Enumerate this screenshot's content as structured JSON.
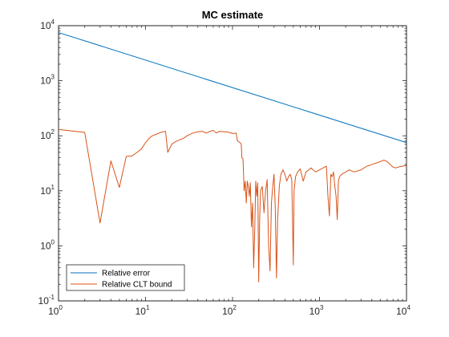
{
  "chart_data": {
    "type": "line",
    "title": "MC estimate",
    "xlabel": "",
    "ylabel": "",
    "xscale": "log",
    "yscale": "log",
    "xlim": [
      1,
      10000
    ],
    "ylim": [
      0.1,
      10000
    ],
    "grid": false,
    "legend_position": "bottom-left",
    "x_ticks": [
      {
        "base": "10",
        "exp": "0",
        "value": 1
      },
      {
        "base": "10",
        "exp": "1",
        "value": 10
      },
      {
        "base": "10",
        "exp": "2",
        "value": 100
      },
      {
        "base": "10",
        "exp": "3",
        "value": 1000
      },
      {
        "base": "10",
        "exp": "4",
        "value": 10000
      }
    ],
    "y_ticks": [
      {
        "base": "10",
        "exp": "-1",
        "value": 0.1
      },
      {
        "base": "10",
        "exp": "0",
        "value": 1
      },
      {
        "base": "10",
        "exp": "1",
        "value": 10
      },
      {
        "base": "10",
        "exp": "2",
        "value": 100
      },
      {
        "base": "10",
        "exp": "3",
        "value": 1000
      },
      {
        "base": "10",
        "exp": "4",
        "value": 10000
      }
    ],
    "series": [
      {
        "name": "Relative error",
        "color": "#0072BD",
        "points": [
          [
            1,
            7500
          ],
          [
            10000,
            75
          ]
        ]
      },
      {
        "name": "Relative CLT bound",
        "color": "#D95319",
        "points": [
          [
            1,
            130
          ],
          [
            2,
            115
          ],
          [
            3,
            2.6
          ],
          [
            4,
            35
          ],
          [
            5,
            11.5
          ],
          [
            6,
            42
          ],
          [
            7,
            43
          ],
          [
            8,
            50
          ],
          [
            9,
            58
          ],
          [
            10,
            75
          ],
          [
            11,
            90
          ],
          [
            12,
            100
          ],
          [
            13,
            105
          ],
          [
            14,
            110
          ],
          [
            15,
            115
          ],
          [
            16,
            118
          ],
          [
            17,
            120
          ],
          [
            18,
            50
          ],
          [
            20,
            70
          ],
          [
            22,
            78
          ],
          [
            25,
            85
          ],
          [
            28,
            92
          ],
          [
            30,
            100
          ],
          [
            35,
            112
          ],
          [
            40,
            118
          ],
          [
            45,
            120
          ],
          [
            50,
            112
          ],
          [
            55,
            120
          ],
          [
            60,
            126
          ],
          [
            65,
            112
          ],
          [
            70,
            120
          ],
          [
            80,
            118
          ],
          [
            90,
            116
          ],
          [
            100,
            110
          ],
          [
            110,
            112
          ],
          [
            114,
            80
          ],
          [
            118,
            78
          ],
          [
            122,
            75
          ],
          [
            126,
            70
          ],
          [
            128,
            40
          ],
          [
            132,
            38
          ],
          [
            136,
            10
          ],
          [
            140,
            15
          ],
          [
            144,
            6
          ],
          [
            148,
            15
          ],
          [
            152,
            12
          ],
          [
            156,
            8
          ],
          [
            160,
            14
          ],
          [
            165,
            2.2
          ],
          [
            170,
            6
          ],
          [
            175,
            0.4
          ],
          [
            180,
            2
          ],
          [
            185,
            15
          ],
          [
            190,
            8
          ],
          [
            195,
            14
          ],
          [
            200,
            0.22
          ],
          [
            205,
            3
          ],
          [
            210,
            10
          ],
          [
            220,
            12
          ],
          [
            230,
            4
          ],
          [
            240,
            10
          ],
          [
            250,
            16
          ],
          [
            260,
            1
          ],
          [
            270,
            0.35
          ],
          [
            280,
            6
          ],
          [
            290,
            12
          ],
          [
            300,
            20
          ],
          [
            310,
            5
          ],
          [
            320,
            0.26
          ],
          [
            330,
            3
          ],
          [
            345,
            12
          ],
          [
            360,
            20
          ],
          [
            380,
            24
          ],
          [
            400,
            20
          ],
          [
            420,
            15
          ],
          [
            440,
            18
          ],
          [
            460,
            20
          ],
          [
            480,
            16
          ],
          [
            500,
            0.45
          ],
          [
            510,
            10
          ],
          [
            530,
            18
          ],
          [
            560,
            22
          ],
          [
            600,
            25
          ],
          [
            650,
            15
          ],
          [
            700,
            22
          ],
          [
            750,
            24
          ],
          [
            800,
            26
          ],
          [
            900,
            22
          ],
          [
            1000,
            24
          ],
          [
            1100,
            26
          ],
          [
            1200,
            28
          ],
          [
            1250,
            8
          ],
          [
            1300,
            3.5
          ],
          [
            1350,
            20
          ],
          [
            1400,
            18
          ],
          [
            1450,
            22
          ],
          [
            1500,
            12
          ],
          [
            1550,
            8
          ],
          [
            1600,
            3
          ],
          [
            1650,
            15
          ],
          [
            1700,
            18
          ],
          [
            1800,
            20
          ],
          [
            2000,
            22
          ],
          [
            2200,
            24
          ],
          [
            2500,
            22
          ],
          [
            3000,
            24
          ],
          [
            3500,
            28
          ],
          [
            4000,
            30
          ],
          [
            4500,
            32
          ],
          [
            5000,
            34
          ],
          [
            5500,
            36
          ],
          [
            6000,
            34
          ],
          [
            6500,
            30
          ],
          [
            7000,
            27
          ],
          [
            7500,
            26
          ],
          [
            8000,
            27
          ],
          [
            9000,
            28
          ],
          [
            10000,
            29
          ]
        ]
      }
    ]
  }
}
